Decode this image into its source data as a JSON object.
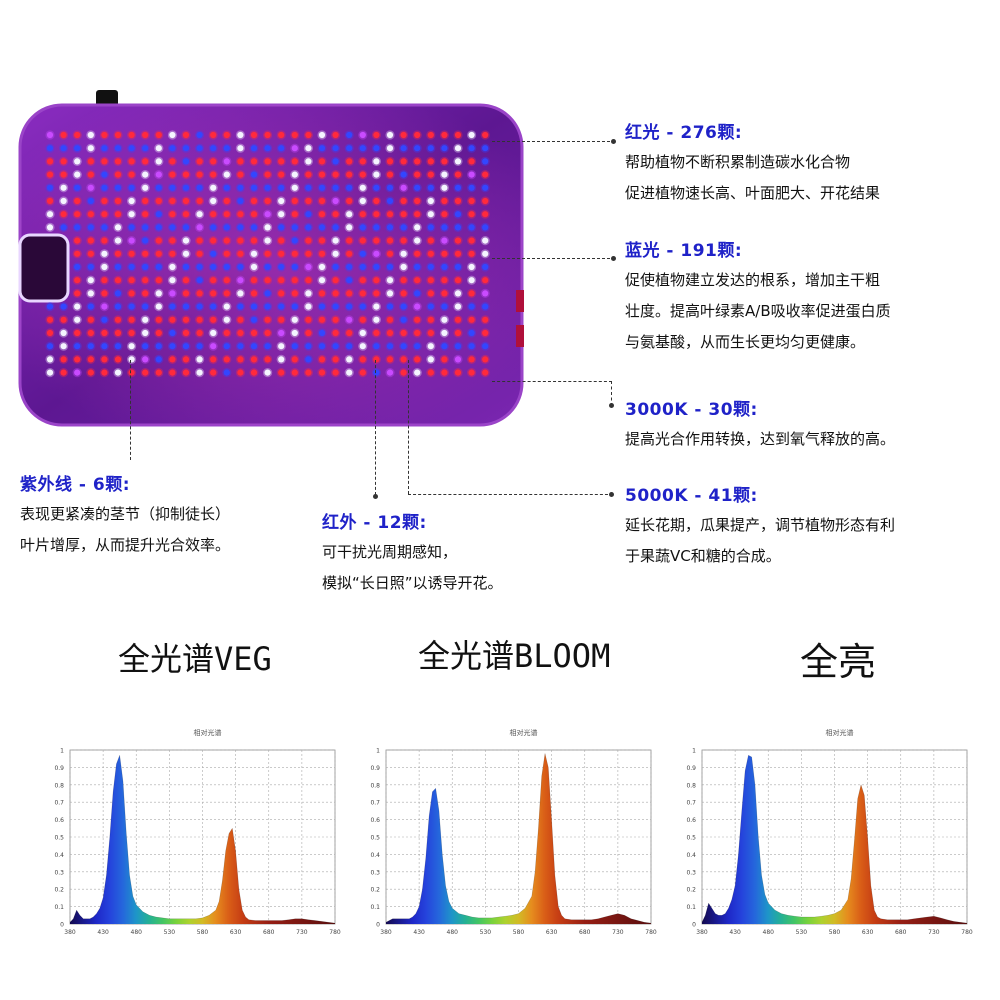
{
  "panel_leds": {
    "colors": {
      "red": "#ff2a3c",
      "blue": "#3346ff",
      "white": "#f4f4ff",
      "purple": "#c94bff",
      "body": "#6e1e9c",
      "body_edge": "#9a44c8"
    }
  },
  "annotations": [
    {
      "key": "red",
      "title": "红光 - 276颗:",
      "lines": [
        "帮助植物不断积累制造碳水化合物",
        "促进植物速长高、叶面肥大、开花结果"
      ]
    },
    {
      "key": "blue",
      "title": "蓝光 - 191颗:",
      "lines": [
        "促使植物建立发达的根系，增加主干粗",
        "壮度。提高叶绿素A/B吸收率促进蛋白质",
        "与氨基酸，从而生长更均匀更健康。"
      ]
    },
    {
      "key": "k3000",
      "title": "3000K - 30颗:",
      "lines": [
        "提高光合作用转换，达到氧气释放的高。"
      ]
    },
    {
      "key": "k5000",
      "title": "5000K - 41颗:",
      "lines": [
        "延长花期，瓜果提产，调节植物形态有利",
        "于果蔬VC和糖的合成。"
      ]
    },
    {
      "key": "uv",
      "title": "紫外线 - 6颗:",
      "lines": [
        "表现更紧凑的茎节（抑制徒长）",
        "叶片增厚，从而提升光合效率。"
      ]
    },
    {
      "key": "ir",
      "title": "红外 - 12颗:",
      "lines": [
        "可干扰光周期感知，",
        "模拟“长日照”以诱导开花。"
      ]
    }
  ],
  "modes": [
    {
      "label": "全光谱VEG"
    },
    {
      "label": "全光谱BLOOM"
    },
    {
      "label": "全亮"
    }
  ],
  "chart_data": [
    {
      "type": "area",
      "title": "相对光谱",
      "x_ticks": [
        "380",
        "430",
        "480",
        "530",
        "580",
        "630",
        "680",
        "730",
        "780"
      ],
      "y_ticks": [
        "1",
        "0.9",
        "0.8",
        "0.7",
        "0.6",
        "0.5",
        "0.4",
        "0.3",
        "0.2",
        "0.1",
        "0"
      ],
      "xlim": [
        380,
        780
      ],
      "ylim": [
        0,
        1
      ],
      "grid": true,
      "x": [
        380,
        385,
        390,
        395,
        400,
        405,
        410,
        415,
        420,
        425,
        430,
        435,
        440,
        445,
        450,
        455,
        460,
        465,
        470,
        475,
        480,
        490,
        500,
        510,
        520,
        530,
        540,
        550,
        560,
        570,
        580,
        590,
        600,
        605,
        610,
        615,
        620,
        625,
        630,
        635,
        640,
        645,
        650,
        660,
        670,
        680,
        690,
        700,
        710,
        720,
        730,
        740,
        750,
        760,
        770,
        780
      ],
      "values": [
        0.01,
        0.03,
        0.08,
        0.05,
        0.03,
        0.03,
        0.03,
        0.04,
        0.06,
        0.09,
        0.15,
        0.28,
        0.5,
        0.76,
        0.92,
        0.97,
        0.82,
        0.52,
        0.28,
        0.16,
        0.11,
        0.07,
        0.05,
        0.04,
        0.035,
        0.03,
        0.03,
        0.03,
        0.03,
        0.03,
        0.035,
        0.05,
        0.08,
        0.13,
        0.25,
        0.42,
        0.52,
        0.55,
        0.42,
        0.2,
        0.08,
        0.04,
        0.025,
        0.02,
        0.02,
        0.02,
        0.02,
        0.02,
        0.025,
        0.03,
        0.03,
        0.025,
        0.02,
        0.015,
        0.01,
        0.005
      ]
    },
    {
      "type": "area",
      "title": "相对光谱",
      "x_ticks": [
        "380",
        "430",
        "480",
        "530",
        "580",
        "630",
        "680",
        "730",
        "780"
      ],
      "y_ticks": [
        "1",
        "0.9",
        "0.8",
        "0.7",
        "0.6",
        "0.5",
        "0.4",
        "0.3",
        "0.2",
        "0.1",
        "0"
      ],
      "xlim": [
        380,
        780
      ],
      "ylim": [
        0,
        1
      ],
      "grid": true,
      "x": [
        380,
        385,
        390,
        395,
        400,
        405,
        410,
        415,
        420,
        425,
        430,
        435,
        440,
        445,
        450,
        455,
        460,
        465,
        470,
        475,
        480,
        490,
        500,
        510,
        520,
        530,
        540,
        550,
        560,
        570,
        580,
        590,
        600,
        605,
        610,
        615,
        620,
        625,
        630,
        635,
        640,
        645,
        650,
        660,
        670,
        680,
        690,
        700,
        710,
        720,
        730,
        740,
        750,
        760,
        770,
        780
      ],
      "values": [
        0.01,
        0.02,
        0.03,
        0.03,
        0.03,
        0.03,
        0.03,
        0.03,
        0.04,
        0.06,
        0.1,
        0.2,
        0.38,
        0.62,
        0.76,
        0.78,
        0.65,
        0.4,
        0.22,
        0.13,
        0.09,
        0.06,
        0.05,
        0.04,
        0.035,
        0.035,
        0.035,
        0.04,
        0.045,
        0.05,
        0.06,
        0.09,
        0.16,
        0.3,
        0.55,
        0.85,
        0.98,
        0.9,
        0.6,
        0.28,
        0.1,
        0.05,
        0.03,
        0.025,
        0.025,
        0.025,
        0.025,
        0.03,
        0.04,
        0.05,
        0.06,
        0.05,
        0.03,
        0.02,
        0.01,
        0.005
      ]
    },
    {
      "type": "area",
      "title": "相对光谱",
      "x_ticks": [
        "380",
        "430",
        "480",
        "530",
        "580",
        "630",
        "680",
        "730",
        "780"
      ],
      "y_ticks": [
        "1",
        "0.9",
        "0.8",
        "0.7",
        "0.6",
        "0.5",
        "0.4",
        "0.3",
        "0.2",
        "0.1",
        "0"
      ],
      "xlim": [
        380,
        780
      ],
      "ylim": [
        0,
        1
      ],
      "grid": true,
      "x": [
        380,
        385,
        390,
        395,
        400,
        405,
        410,
        415,
        420,
        425,
        430,
        435,
        440,
        445,
        450,
        455,
        460,
        465,
        470,
        475,
        480,
        490,
        500,
        510,
        520,
        530,
        540,
        550,
        560,
        570,
        580,
        590,
        600,
        605,
        610,
        615,
        620,
        625,
        630,
        635,
        640,
        645,
        650,
        660,
        670,
        680,
        690,
        700,
        710,
        720,
        730,
        740,
        750,
        760,
        770,
        780
      ],
      "values": [
        0.01,
        0.05,
        0.12,
        0.09,
        0.06,
        0.05,
        0.05,
        0.06,
        0.09,
        0.14,
        0.22,
        0.4,
        0.65,
        0.88,
        0.97,
        0.96,
        0.8,
        0.5,
        0.28,
        0.17,
        0.12,
        0.08,
        0.06,
        0.05,
        0.045,
        0.04,
        0.04,
        0.04,
        0.045,
        0.05,
        0.06,
        0.08,
        0.14,
        0.26,
        0.48,
        0.72,
        0.8,
        0.74,
        0.5,
        0.22,
        0.08,
        0.04,
        0.03,
        0.025,
        0.025,
        0.025,
        0.025,
        0.03,
        0.035,
        0.04,
        0.045,
        0.035,
        0.025,
        0.015,
        0.01,
        0.005
      ]
    }
  ]
}
